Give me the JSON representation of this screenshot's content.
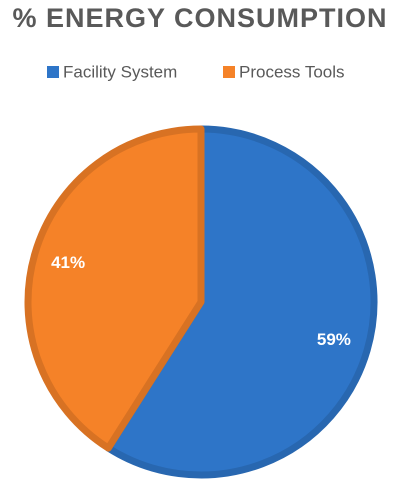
{
  "chart_data": {
    "type": "pie",
    "title": "% ENERGY CONSUMPTION",
    "categories": [
      "Facility System",
      "Process Tools"
    ],
    "values": [
      59,
      41
    ],
    "value_labels": [
      "59%",
      "41%"
    ],
    "colors": [
      "#2e75c8",
      "#f58228"
    ],
    "legend": "top"
  }
}
